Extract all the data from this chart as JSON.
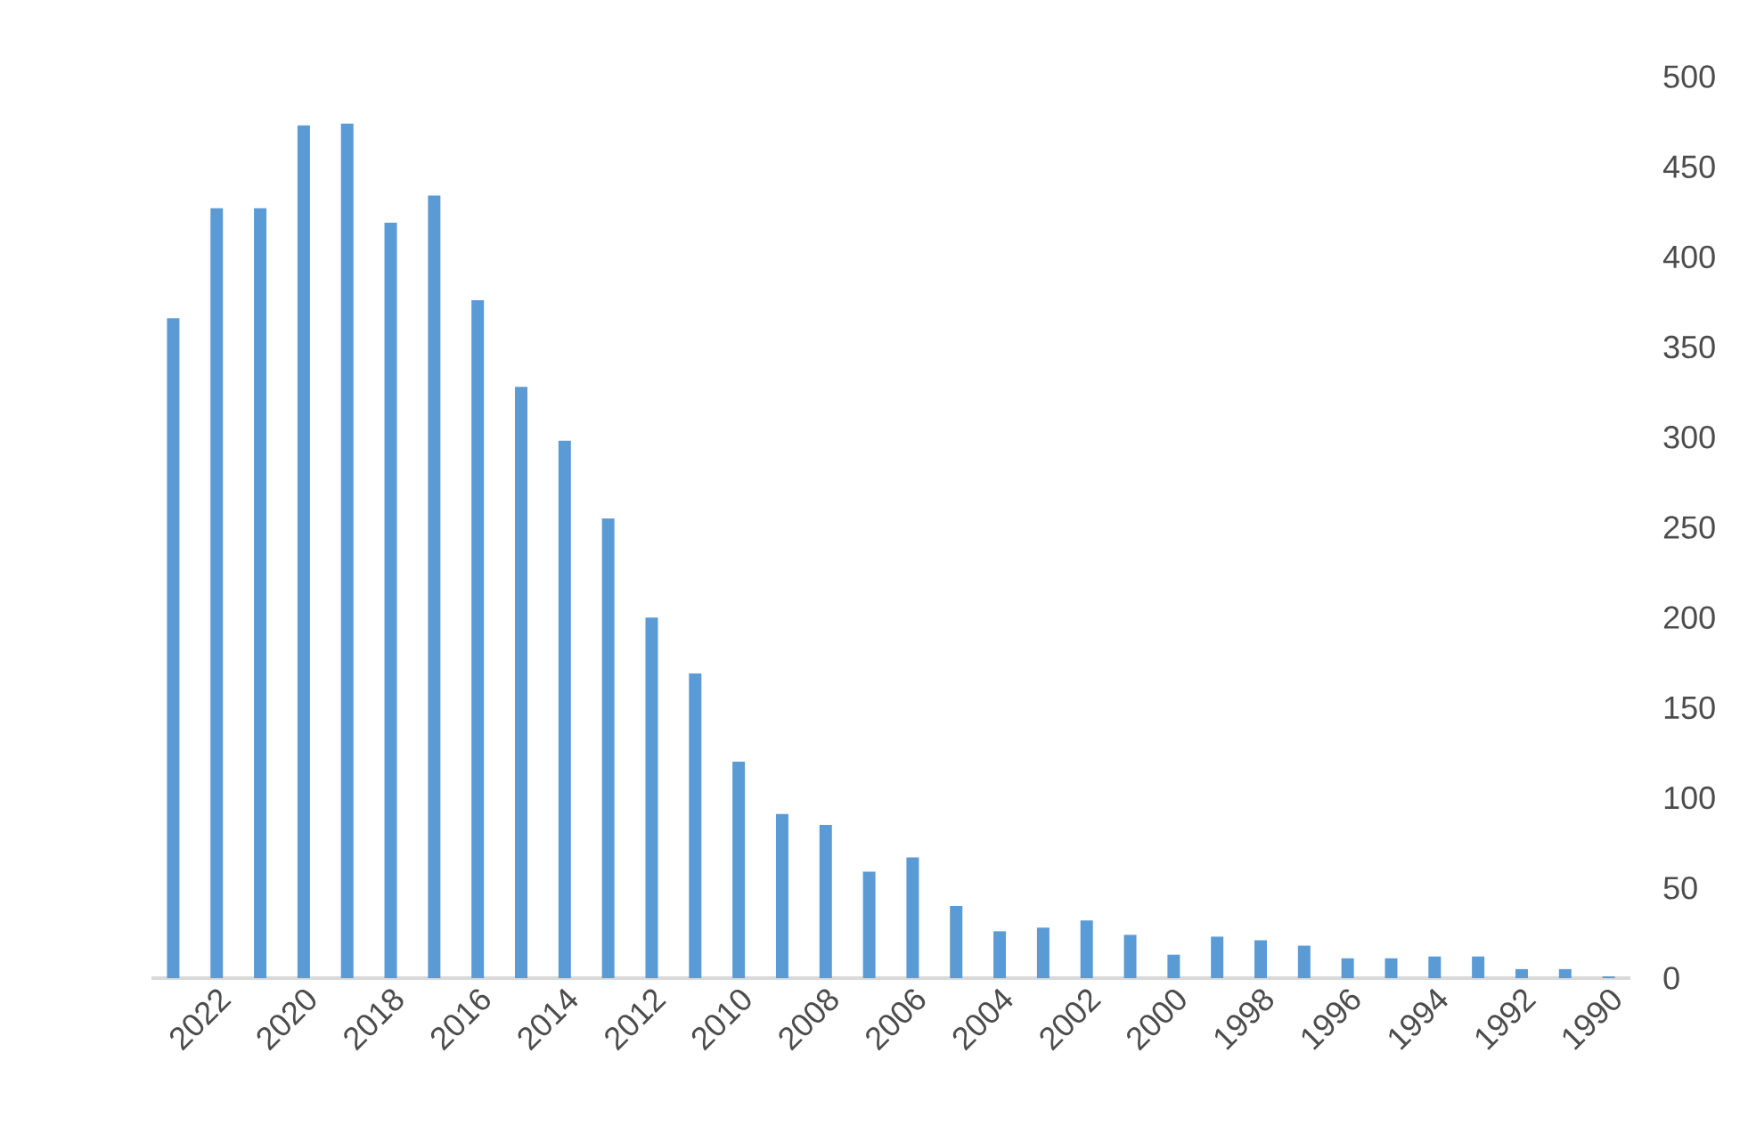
{
  "chart_data": {
    "type": "bar",
    "categories": [
      null,
      "2022",
      null,
      "2020",
      null,
      "2018",
      null,
      "2016",
      null,
      "2014",
      null,
      "2012",
      null,
      "2010",
      null,
      "2008",
      null,
      "2006",
      null,
      "2004",
      null,
      "2002",
      null,
      "2000",
      null,
      "1998",
      null,
      "1996",
      null,
      "1994",
      null,
      "1992",
      null,
      "1990"
    ],
    "values": [
      366,
      427,
      427,
      473,
      474,
      419,
      434,
      376,
      328,
      298,
      255,
      200,
      169,
      120,
      91,
      85,
      59,
      67,
      40,
      26,
      28,
      32,
      24,
      13,
      23,
      21,
      18,
      11,
      11,
      12,
      12,
      5,
      5,
      1
    ],
    "color": "#5b9bd5",
    "ylim": [
      0,
      500
    ],
    "yticks": [
      0,
      50,
      100,
      150,
      200,
      250,
      300,
      350,
      400,
      450,
      500
    ]
  }
}
